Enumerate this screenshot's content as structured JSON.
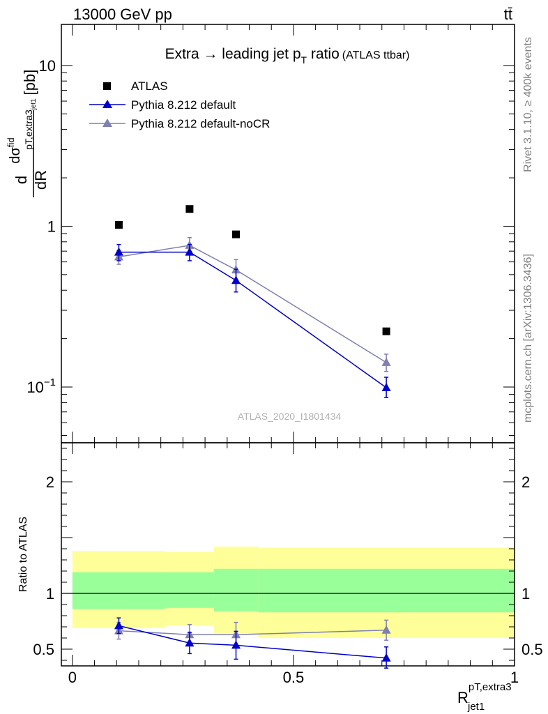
{
  "header": {
    "left": "13000 GeV pp",
    "right": "tt̄"
  },
  "title": {
    "main": "Extra → leading jet p",
    "sub": "T",
    "main2": " ratio",
    "tag": "(ATLAS ttbar)"
  },
  "side_labels": {
    "rivet": "Rivet 3.1.10, ≥ 400k events",
    "mcplots": "mcplots.cern.ch [arXiv:1306.3436]"
  },
  "watermark": "ATLAS_2020_I1801434",
  "colors": {
    "atlas": "#000000",
    "default": "#0000cc",
    "nocr": "#7f7fb2",
    "band_green": "#99ff99",
    "band_yellow": "#ffff99"
  },
  "chart_data": [
    {
      "type": "scatter",
      "yscale": "log",
      "ylim": [
        0.045,
        18
      ],
      "xlim": [
        -0.025,
        1.0
      ],
      "ylabel": {
        "d": "d",
        "sigma": "dσ",
        "fid": "fid",
        "sub": "pT,extra3",
        "subsub": "jet1",
        "den": "dR",
        "unit": "[pb]"
      },
      "yticks": [
        {
          "value": 10,
          "label": "10"
        },
        {
          "value": 1,
          "label": "1"
        },
        {
          "value": 0.1,
          "base": "10",
          "exp": "−1"
        }
      ],
      "legend": [
        {
          "name": "ATLAS",
          "marker": "square"
        },
        {
          "name": "Pythia 8.212 default",
          "marker": "triangle"
        },
        {
          "name": "Pythia 8.212 default-noCR",
          "marker": "triangle"
        }
      ],
      "series": [
        {
          "name": "ATLAS",
          "x": [
            0.105,
            0.265,
            0.37,
            0.71
          ],
          "y": [
            1.02,
            1.28,
            0.89,
            0.222
          ]
        },
        {
          "name": "Pythia 8.212 default",
          "x": [
            0.105,
            0.265,
            0.37,
            0.71
          ],
          "y": [
            0.69,
            0.69,
            0.46,
            0.099
          ],
          "yerr": [
            [
              0.61,
              0.77
            ],
            [
              0.61,
              0.77
            ],
            [
              0.39,
              0.54
            ],
            [
              0.086,
              0.115
            ]
          ]
        },
        {
          "name": "Pythia 8.212 default-noCR",
          "x": [
            0.105,
            0.265,
            0.37,
            0.71
          ],
          "y": [
            0.645,
            0.76,
            0.535,
            0.142
          ],
          "yerr": [
            [
              0.58,
              0.71
            ],
            [
              0.68,
              0.85
            ],
            [
              0.46,
              0.62
            ],
            [
              0.125,
              0.16
            ]
          ]
        }
      ]
    },
    {
      "type": "line",
      "ylim": [
        0.35,
        2.35
      ],
      "xlim": [
        -0.025,
        1.0
      ],
      "ylabel": "Ratio to ATLAS",
      "xlabel": {
        "main": "R",
        "sup": "pT,extra3",
        "sub": "jet1"
      },
      "yticks": [
        {
          "value": 2,
          "label": "2"
        },
        {
          "value": 1,
          "label": "1"
        },
        {
          "value": 0.5,
          "label": "0.5"
        }
      ],
      "xticks": [
        {
          "value": 0,
          "label": "0"
        },
        {
          "value": 0.5,
          "label": "0.5"
        },
        {
          "value": 1,
          "label": "1"
        }
      ],
      "bands": [
        {
          "x0": 0.0,
          "x1": 0.21,
          "g0": 0.86,
          "g1": 1.19,
          "y0": 0.69,
          "y1": 1.38
        },
        {
          "x0": 0.21,
          "x1": 0.32,
          "g0": 0.87,
          "g1": 1.19,
          "y0": 0.71,
          "y1": 1.37
        },
        {
          "x0": 0.32,
          "x1": 0.42,
          "g0": 0.84,
          "g1": 1.22,
          "y0": 0.64,
          "y1": 1.42
        },
        {
          "x0": 0.42,
          "x1": 1.0,
          "g0": 0.83,
          "g1": 1.22,
          "y0": 0.6,
          "y1": 1.41
        }
      ],
      "series": [
        {
          "name": "Pythia 8.212 default",
          "x": [
            0.105,
            0.265,
            0.37,
            0.71
          ],
          "y": [
            0.71,
            0.555,
            0.535,
            0.42
          ],
          "yerr": [
            [
              0.64,
              0.78
            ],
            [
              0.46,
              0.65
            ],
            [
              0.41,
              0.66
            ],
            [
              0.33,
              0.52
            ]
          ]
        },
        {
          "name": "Pythia 8.212 default-noCR",
          "x": [
            0.105,
            0.265,
            0.37,
            0.71
          ],
          "y": [
            0.665,
            0.63,
            0.63,
            0.67
          ],
          "yerr": [
            [
              0.59,
              0.74
            ],
            [
              0.54,
              0.72
            ],
            [
              0.52,
              0.74
            ],
            [
              0.58,
              0.76
            ]
          ]
        }
      ]
    }
  ]
}
